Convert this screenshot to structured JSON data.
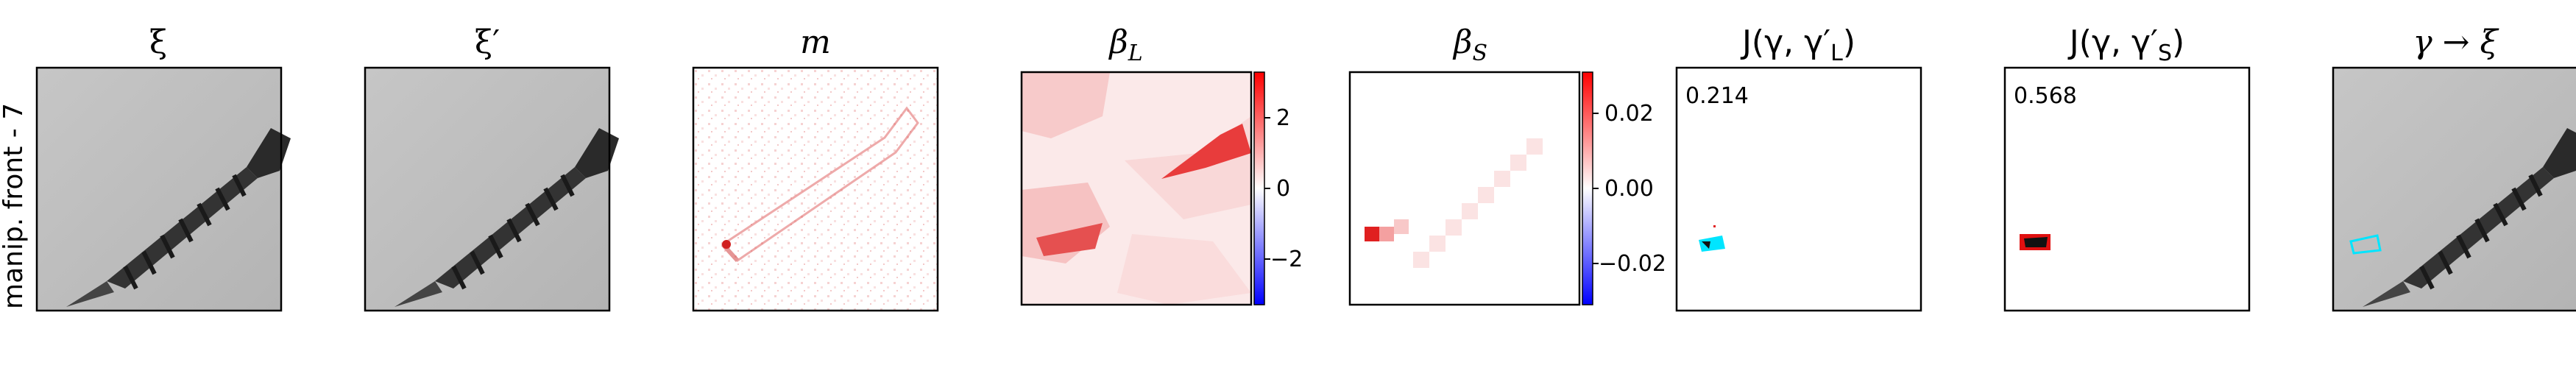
{
  "row_label": "manip. front - 7",
  "panels": [
    {
      "id": "xi",
      "title": "ξ",
      "type": "image"
    },
    {
      "id": "xi_prime",
      "title": "ξ′",
      "type": "image"
    },
    {
      "id": "m",
      "title": "m",
      "type": "heatmap"
    },
    {
      "id": "beta_L",
      "title": "β",
      "title_sub": "L",
      "type": "heatmap"
    },
    {
      "id": "beta_S",
      "title": "β",
      "title_sub": "S",
      "type": "heatmap"
    },
    {
      "id": "J_L",
      "title": "J(γ, γ′",
      "title_sub": "L",
      "title_end": ")",
      "type": "mask",
      "score": "0.214"
    },
    {
      "id": "J_S",
      "title": "J(γ, γ′",
      "title_sub": "S",
      "title_end": ")",
      "type": "mask",
      "score": "0.568"
    },
    {
      "id": "overlay",
      "title": "γ → ξ",
      "type": "image"
    }
  ],
  "colorbars": {
    "beta_L": {
      "ticks": [
        "2",
        "0",
        "−2"
      ],
      "range": [
        -3.2,
        3.2
      ],
      "colors": [
        "#0000ff",
        "#ffffff",
        "#ff0000"
      ]
    },
    "beta_S": {
      "ticks": [
        "0.02",
        "0.00",
        "−0.02"
      ],
      "range": [
        -0.03,
        0.03
      ],
      "colors": [
        "#0000ff",
        "#ffffff",
        "#ff0000"
      ]
    }
  },
  "colors": {
    "heat": "#e53030",
    "mask_cyan": "#00e5ff",
    "mask_red": "#e01010",
    "screw": "#3a3a3a",
    "bg_gray": "#bdbdbd"
  }
}
